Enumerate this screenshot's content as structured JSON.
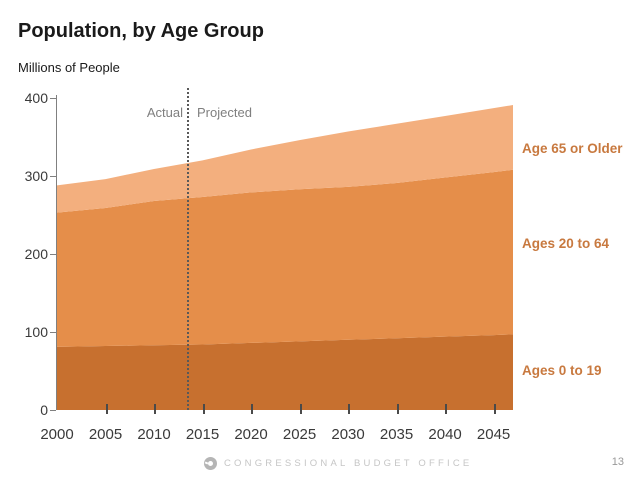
{
  "slide": {
    "title": "Population, by Age Group",
    "subtitle": "Millions of People",
    "footer_brand": "CONGRESSIONAL BUDGET OFFICE",
    "page_number": "13"
  },
  "annotations": {
    "actual_label": "Actual",
    "projected_label": "Projected",
    "divider_year": 2013.5
  },
  "legend": [
    {
      "label": "Age 65 or Older"
    },
    {
      "label": "Ages 20 to 64"
    },
    {
      "label": "Ages 0 to 19"
    }
  ],
  "colors": {
    "band_ages_0_19": "#C7702F",
    "band_ages_20_64": "#E58E4A",
    "band_age_65_plus": "#F3AF7E",
    "legend_text": "#C8793F",
    "divider_line": "#595959",
    "axis_line": "#808080"
  },
  "chart_data": {
    "type": "area",
    "stacked": true,
    "title": "Population, by Age Group",
    "ylabel": "Millions of People",
    "xlabel": "",
    "x": [
      2000,
      2005,
      2010,
      2015,
      2020,
      2025,
      2030,
      2035,
      2040,
      2045,
      2047
    ],
    "series": [
      {
        "name": "Ages 0 to 19",
        "color": "#C7702F",
        "values": [
          81,
          82,
          83,
          84,
          86,
          88,
          90,
          92,
          94,
          96,
          97
        ]
      },
      {
        "name": "Ages 20 to 64",
        "color": "#E58E4A",
        "values": [
          172,
          177,
          185,
          189,
          193,
          195,
          196,
          199,
          204,
          209,
          211
        ]
      },
      {
        "name": "Age 65 or Older",
        "color": "#F3AF7E",
        "values": [
          35,
          37,
          41,
          47,
          55,
          63,
          71,
          76,
          79,
          82,
          83
        ]
      }
    ],
    "totals": [
      288,
      296,
      309,
      320,
      334,
      346,
      357,
      367,
      377,
      387,
      391
    ],
    "xticks": [
      2000,
      2005,
      2010,
      2015,
      2020,
      2025,
      2030,
      2035,
      2040,
      2045
    ],
    "yticks": [
      0,
      100,
      200,
      300,
      400
    ],
    "ylim": [
      0,
      400
    ],
    "xlim": [
      2000,
      2047
    ],
    "grid": false,
    "legend_position": "right",
    "annotation_divider": {
      "x": 2013.5,
      "left_label": "Actual",
      "right_label": "Projected"
    }
  }
}
